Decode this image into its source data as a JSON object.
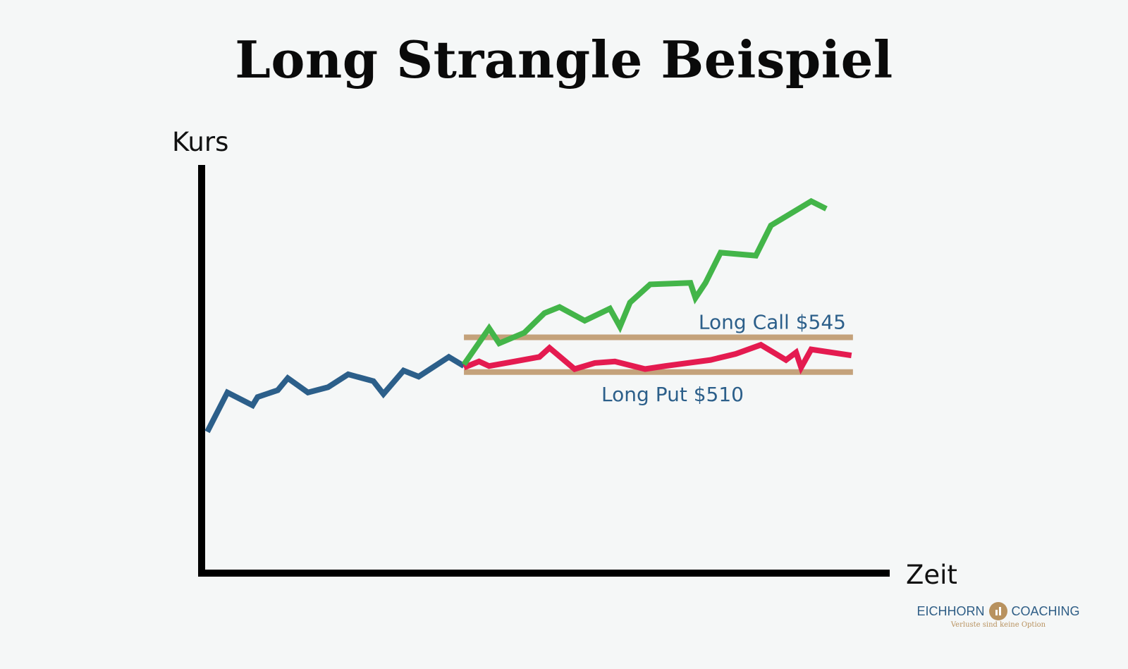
{
  "chart_data": {
    "type": "line",
    "title": "Long Strangle Beispiel",
    "ylabel": "Kurs",
    "xlabel": "Zeit",
    "grid": false,
    "series": [
      {
        "color": "#2c5f8a",
        "points": [
          [
            0,
            505.7
          ],
          [
            4,
            510.9
          ],
          [
            9,
            509.2
          ],
          [
            10,
            510.3
          ],
          [
            14,
            511.2
          ],
          [
            16,
            512.8
          ],
          [
            20,
            510.9
          ],
          [
            24,
            511.6
          ],
          [
            28,
            513.3
          ],
          [
            33,
            512.4
          ],
          [
            35,
            510.7
          ],
          [
            39,
            513.8
          ],
          [
            42,
            513.0
          ],
          [
            48,
            515.6
          ],
          [
            51,
            514.4
          ]
        ]
      },
      {
        "color": "#e41b50",
        "points": [
          [
            51,
            514.2
          ],
          [
            54,
            515.0
          ],
          [
            56,
            514.4
          ],
          [
            61,
            515.0
          ],
          [
            66,
            515.6
          ],
          [
            68,
            516.8
          ],
          [
            73,
            514.0
          ],
          [
            77,
            514.8
          ],
          [
            81,
            515.0
          ],
          [
            87,
            514.0
          ],
          [
            91,
            514.4
          ],
          [
            100,
            515.2
          ],
          [
            105,
            516.0
          ],
          [
            110,
            517.2
          ],
          [
            115,
            515.2
          ],
          [
            117,
            516.2
          ],
          [
            118,
            514.2
          ],
          [
            120,
            516.6
          ],
          [
            128,
            515.8
          ]
        ]
      },
      {
        "color": "#43b549",
        "points": [
          [
            51,
            514.6
          ],
          [
            56,
            519.4
          ],
          [
            58,
            517.4
          ],
          [
            63,
            518.8
          ],
          [
            67,
            521.4
          ],
          [
            70,
            522.2
          ],
          [
            75,
            520.4
          ],
          [
            80,
            522.0
          ],
          [
            82,
            519.6
          ],
          [
            84,
            522.8
          ],
          [
            88,
            525.2
          ],
          [
            96,
            525.4
          ],
          [
            97,
            523.4
          ],
          [
            99,
            525.4
          ],
          [
            102,
            529.4
          ],
          [
            109,
            529.0
          ],
          [
            112,
            533.0
          ],
          [
            120,
            536.2
          ],
          [
            123,
            535.2
          ]
        ]
      }
    ],
    "strike_lines": [
      {
        "label": "Long Call $545",
        "value": 518.2,
        "color": "#c4a27b"
      },
      {
        "label": "Long Put $510",
        "value": 513.6,
        "color": "#c4a27b"
      }
    ],
    "xlim": [
      0,
      130
    ],
    "ylim": [
      487.0,
      541.0
    ]
  },
  "footer": {
    "brand_left": "EICHHORN",
    "brand_right": "COACHING",
    "tagline": "Verluste sind keine Option"
  }
}
